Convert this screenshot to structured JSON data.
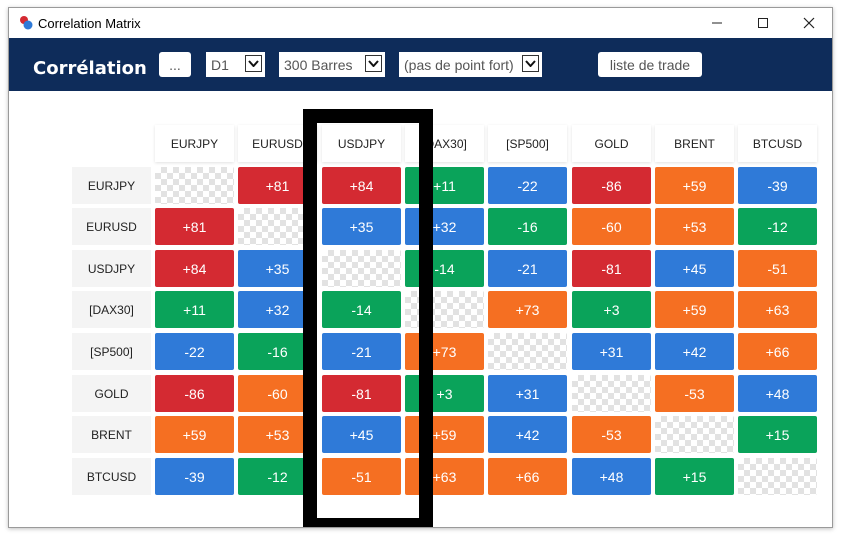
{
  "window": {
    "title": "Correlation Matrix"
  },
  "toolbar": {
    "title": "Corrélation",
    "ellipsis_label": "...",
    "timeframe": "D1",
    "bars": "300 Barres",
    "point_fort": "(pas de point fort)",
    "trade_list_label": "liste de trade"
  },
  "colors": {
    "red": "#d42a32",
    "orange": "#f56f22",
    "green": "#0aa35a",
    "blue": "#2f7ad8",
    "toolbar_bg": "#0e2c5a"
  },
  "matrix": {
    "columns": [
      "EURJPY",
      "EURUSD",
      "USDJPY",
      "[DAX30]",
      "[SP500]",
      "GOLD",
      "BRENT",
      "BTCUSD"
    ],
    "rows": [
      {
        "label": "EURJPY",
        "cells": [
          {
            "v": "",
            "c": "diag"
          },
          {
            "v": "+81",
            "c": "red"
          },
          {
            "v": "+84",
            "c": "red"
          },
          {
            "v": "+11",
            "c": "green"
          },
          {
            "v": "-22",
            "c": "blue"
          },
          {
            "v": "-86",
            "c": "red"
          },
          {
            "v": "+59",
            "c": "orange"
          },
          {
            "v": "-39",
            "c": "blue"
          }
        ]
      },
      {
        "label": "EURUSD",
        "cells": [
          {
            "v": "+81",
            "c": "red"
          },
          {
            "v": "",
            "c": "diag"
          },
          {
            "v": "+35",
            "c": "blue"
          },
          {
            "v": "+32",
            "c": "blue"
          },
          {
            "v": "-16",
            "c": "green"
          },
          {
            "v": "-60",
            "c": "orange"
          },
          {
            "v": "+53",
            "c": "orange"
          },
          {
            "v": "-12",
            "c": "green"
          }
        ]
      },
      {
        "label": "USDJPY",
        "cells": [
          {
            "v": "+84",
            "c": "red"
          },
          {
            "v": "+35",
            "c": "blue"
          },
          {
            "v": "",
            "c": "diag"
          },
          {
            "v": "-14",
            "c": "green"
          },
          {
            "v": "-21",
            "c": "blue"
          },
          {
            "v": "-81",
            "c": "red"
          },
          {
            "v": "+45",
            "c": "blue"
          },
          {
            "v": "-51",
            "c": "orange"
          }
        ]
      },
      {
        "label": "[DAX30]",
        "cells": [
          {
            "v": "+11",
            "c": "green"
          },
          {
            "v": "+32",
            "c": "blue"
          },
          {
            "v": "-14",
            "c": "green"
          },
          {
            "v": "",
            "c": "diag"
          },
          {
            "v": "+73",
            "c": "orange"
          },
          {
            "v": "+3",
            "c": "green"
          },
          {
            "v": "+59",
            "c": "orange"
          },
          {
            "v": "+63",
            "c": "orange"
          }
        ]
      },
      {
        "label": "[SP500]",
        "cells": [
          {
            "v": "-22",
            "c": "blue"
          },
          {
            "v": "-16",
            "c": "green"
          },
          {
            "v": "-21",
            "c": "blue"
          },
          {
            "v": "+73",
            "c": "orange"
          },
          {
            "v": "",
            "c": "diag"
          },
          {
            "v": "+31",
            "c": "blue"
          },
          {
            "v": "+42",
            "c": "blue"
          },
          {
            "v": "+66",
            "c": "orange"
          }
        ]
      },
      {
        "label": "GOLD",
        "cells": [
          {
            "v": "-86",
            "c": "red"
          },
          {
            "v": "-60",
            "c": "orange"
          },
          {
            "v": "-81",
            "c": "red"
          },
          {
            "v": "+3",
            "c": "green"
          },
          {
            "v": "+31",
            "c": "blue"
          },
          {
            "v": "",
            "c": "diag"
          },
          {
            "v": "-53",
            "c": "orange"
          },
          {
            "v": "+48",
            "c": "blue"
          }
        ]
      },
      {
        "label": "BRENT",
        "cells": [
          {
            "v": "+59",
            "c": "orange"
          },
          {
            "v": "+53",
            "c": "orange"
          },
          {
            "v": "+45",
            "c": "blue"
          },
          {
            "v": "+59",
            "c": "orange"
          },
          {
            "v": "+42",
            "c": "blue"
          },
          {
            "v": "-53",
            "c": "orange"
          },
          {
            "v": "",
            "c": "diag"
          },
          {
            "v": "+15",
            "c": "green"
          }
        ]
      },
      {
        "label": "BTCUSD",
        "cells": [
          {
            "v": "-39",
            "c": "blue"
          },
          {
            "v": "-12",
            "c": "green"
          },
          {
            "v": "-51",
            "c": "orange"
          },
          {
            "v": "+63",
            "c": "orange"
          },
          {
            "v": "+66",
            "c": "orange"
          },
          {
            "v": "+48",
            "c": "blue"
          },
          {
            "v": "+15",
            "c": "green"
          },
          {
            "v": "",
            "c": "diag"
          }
        ]
      }
    ]
  }
}
